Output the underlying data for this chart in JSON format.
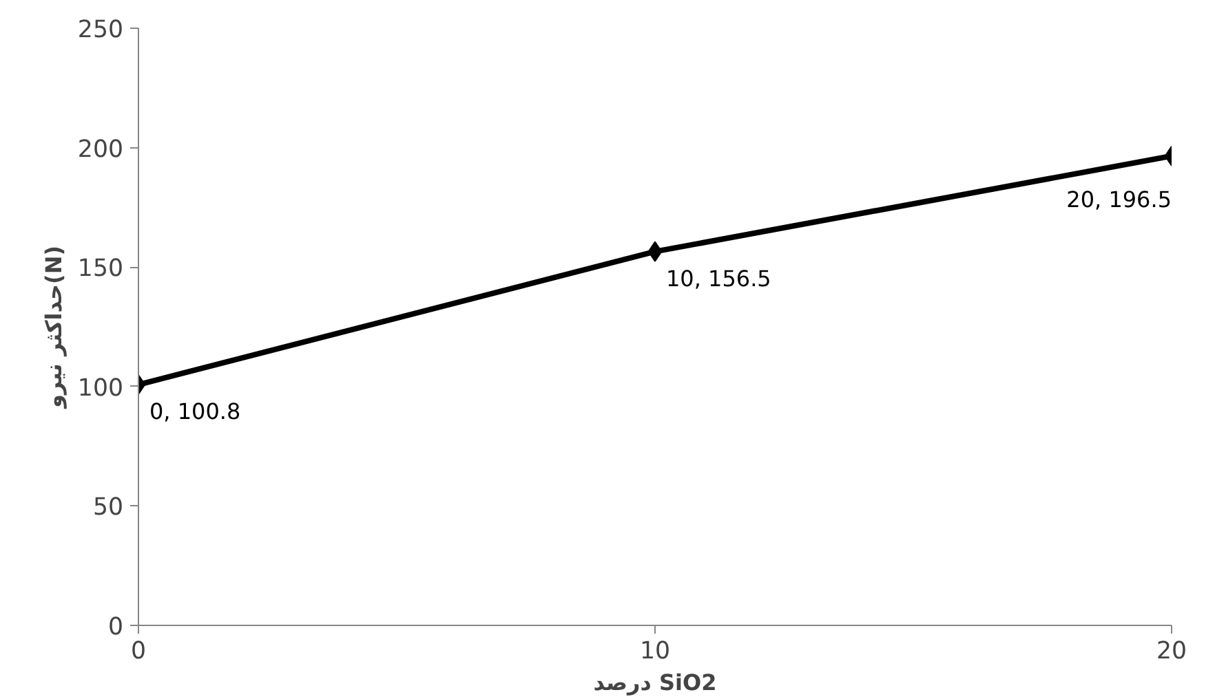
{
  "chart_data": {
    "type": "line",
    "xlabel": "درصد SiO2",
    "ylabel": "حداکثر نیرو(N)",
    "x": [
      0,
      10,
      20
    ],
    "series": [
      {
        "color": "#000000",
        "values": [
          100.8,
          156.5,
          196.5
        ],
        "value_labels": [
          "0, 100.8",
          "10, 156.5",
          "20, 196.5"
        ]
      }
    ],
    "xlim": [
      0,
      20
    ],
    "xticks": [
      0,
      10,
      20
    ],
    "ylim": [
      0,
      250
    ],
    "yticks": [
      0,
      50,
      100,
      150,
      200,
      250
    ],
    "grid": false,
    "marker": "diamond",
    "line_style": "solid"
  }
}
